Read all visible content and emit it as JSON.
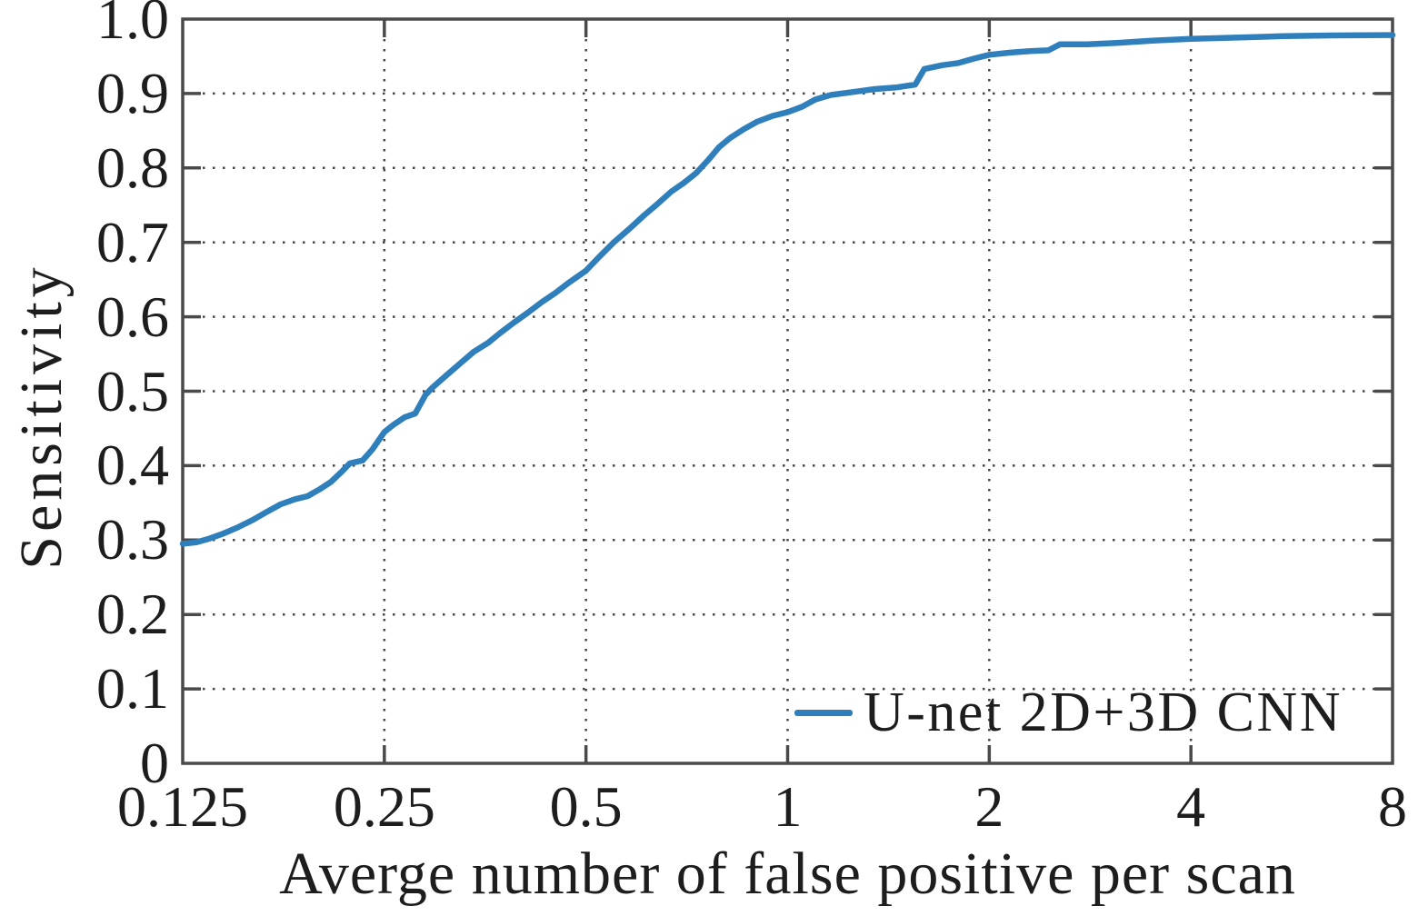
{
  "colors": {
    "curve_blue": "#2e7fbb",
    "axis_gray": "#4a4a4a",
    "grid_gray": "#454545",
    "text_black": "#1d1d1d",
    "background": "#ffffff"
  },
  "chart_data": {
    "type": "line",
    "title": "",
    "xlabel": "Averge number of false positive per scan",
    "ylabel": "Sensitivity",
    "x_scale": "log2",
    "xlim": [
      0.125,
      8
    ],
    "ylim": [
      0,
      1.0
    ],
    "x_ticks": [
      0.125,
      0.25,
      0.5,
      1,
      2,
      4,
      8
    ],
    "x_tick_labels": [
      "0.125",
      "0.25",
      "0.5",
      "1",
      "2",
      "4",
      "8"
    ],
    "y_ticks": [
      0,
      0.1,
      0.2,
      0.3,
      0.4,
      0.5,
      0.6,
      0.7,
      0.8,
      0.9,
      1.0
    ],
    "y_tick_labels": [
      "0",
      "0.1",
      "0.2",
      "0.3",
      "0.4",
      "0.5",
      "0.6",
      "0.7",
      "0.8",
      "0.9",
      "1.0"
    ],
    "grid": true,
    "grid_style": "dotted",
    "legend": {
      "position": "lower right",
      "frame": false,
      "entries": [
        {
          "label": "U-net 2D+3D CNN",
          "color": "#2e7fbb"
        }
      ]
    },
    "series": [
      {
        "name": "U-net 2D+3D CNN",
        "color": "#2e7fbb",
        "points": [
          [
            0.125,
            0.295
          ],
          [
            0.131,
            0.297
          ],
          [
            0.137,
            0.302
          ],
          [
            0.144,
            0.309
          ],
          [
            0.151,
            0.317
          ],
          [
            0.159,
            0.327
          ],
          [
            0.167,
            0.338
          ],
          [
            0.175,
            0.348
          ],
          [
            0.184,
            0.355
          ],
          [
            0.192,
            0.359
          ],
          [
            0.2,
            0.368
          ],
          [
            0.208,
            0.378
          ],
          [
            0.216,
            0.392
          ],
          [
            0.222,
            0.403
          ],
          [
            0.232,
            0.407
          ],
          [
            0.24,
            0.422
          ],
          [
            0.25,
            0.445
          ],
          [
            0.258,
            0.455
          ],
          [
            0.268,
            0.465
          ],
          [
            0.278,
            0.47
          ],
          [
            0.288,
            0.495
          ],
          [
            0.295,
            0.505
          ],
          [
            0.31,
            0.522
          ],
          [
            0.325,
            0.538
          ],
          [
            0.34,
            0.553
          ],
          [
            0.357,
            0.565
          ],
          [
            0.372,
            0.578
          ],
          [
            0.39,
            0.592
          ],
          [
            0.41,
            0.606
          ],
          [
            0.43,
            0.62
          ],
          [
            0.45,
            0.632
          ],
          [
            0.47,
            0.645
          ],
          [
            0.5,
            0.662
          ],
          [
            0.52,
            0.678
          ],
          [
            0.55,
            0.7
          ],
          [
            0.58,
            0.718
          ],
          [
            0.61,
            0.736
          ],
          [
            0.64,
            0.752
          ],
          [
            0.67,
            0.768
          ],
          [
            0.7,
            0.78
          ],
          [
            0.73,
            0.793
          ],
          [
            0.76,
            0.81
          ],
          [
            0.79,
            0.828
          ],
          [
            0.82,
            0.84
          ],
          [
            0.86,
            0.852
          ],
          [
            0.9,
            0.862
          ],
          [
            0.95,
            0.87
          ],
          [
            1.0,
            0.875
          ],
          [
            1.05,
            0.882
          ],
          [
            1.1,
            0.892
          ],
          [
            1.16,
            0.898
          ],
          [
            1.25,
            0.902
          ],
          [
            1.35,
            0.906
          ],
          [
            1.45,
            0.908
          ],
          [
            1.55,
            0.912
          ],
          [
            1.6,
            0.933
          ],
          [
            1.7,
            0.938
          ],
          [
            1.8,
            0.941
          ],
          [
            1.9,
            0.947
          ],
          [
            2.0,
            0.952
          ],
          [
            2.15,
            0.955
          ],
          [
            2.3,
            0.957
          ],
          [
            2.45,
            0.958
          ],
          [
            2.55,
            0.966
          ],
          [
            2.8,
            0.966
          ],
          [
            3.1,
            0.968
          ],
          [
            3.5,
            0.971
          ],
          [
            4.0,
            0.9735
          ],
          [
            4.6,
            0.975
          ],
          [
            5.5,
            0.977
          ],
          [
            6.5,
            0.978
          ],
          [
            8.0,
            0.9785
          ]
        ]
      }
    ]
  }
}
